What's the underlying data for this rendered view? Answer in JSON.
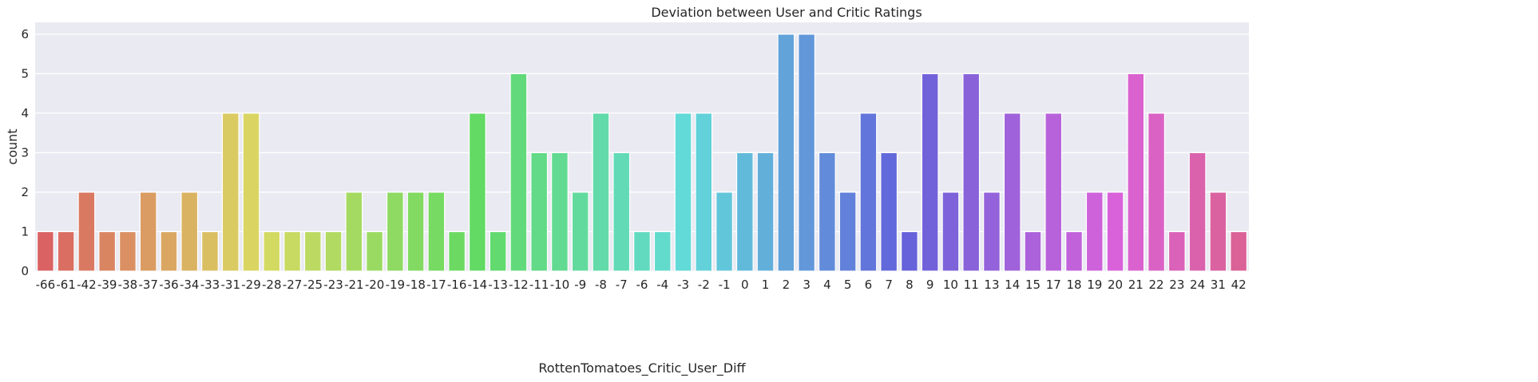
{
  "chart_data": {
    "type": "bar",
    "title": "Deviation between User and Critic Ratings",
    "xlabel": "RottenTomatoes_Critic_User_Diff",
    "ylabel": "count",
    "ylim": [
      0,
      6.3
    ],
    "yticks": [
      "0",
      "1",
      "2",
      "3",
      "4",
      "5",
      "6"
    ],
    "grid": true,
    "categories": [
      "-66",
      "-61",
      "-42",
      "-39",
      "-38",
      "-37",
      "-36",
      "-34",
      "-33",
      "-31",
      "-29",
      "-28",
      "-27",
      "-25",
      "-23",
      "-21",
      "-20",
      "-19",
      "-18",
      "-17",
      "-16",
      "-14",
      "-13",
      "-12",
      "-11",
      "-10",
      "-9",
      "-8",
      "-7",
      "-6",
      "-4",
      "-3",
      "-2",
      "-1",
      "0",
      "1",
      "2",
      "3",
      "4",
      "5",
      "6",
      "7",
      "8",
      "9",
      "10",
      "11",
      "13",
      "14",
      "15",
      "17",
      "18",
      "19",
      "20",
      "21",
      "22",
      "23",
      "24",
      "31",
      "42"
    ],
    "values": [
      1,
      1,
      2,
      1,
      1,
      2,
      1,
      2,
      1,
      4,
      4,
      1,
      1,
      1,
      1,
      2,
      1,
      2,
      2,
      2,
      1,
      4,
      1,
      5,
      3,
      3,
      2,
      4,
      3,
      1,
      1,
      4,
      4,
      2,
      3,
      3,
      6,
      6,
      3,
      2,
      4,
      3,
      1,
      5,
      2,
      5,
      2,
      4,
      1,
      4,
      1,
      2,
      2,
      5,
      4,
      1,
      3,
      2,
      1
    ]
  },
  "colors": {
    "plot_background": "#EAEAF2",
    "grid": "#FFFFFF",
    "text": "#262626"
  }
}
